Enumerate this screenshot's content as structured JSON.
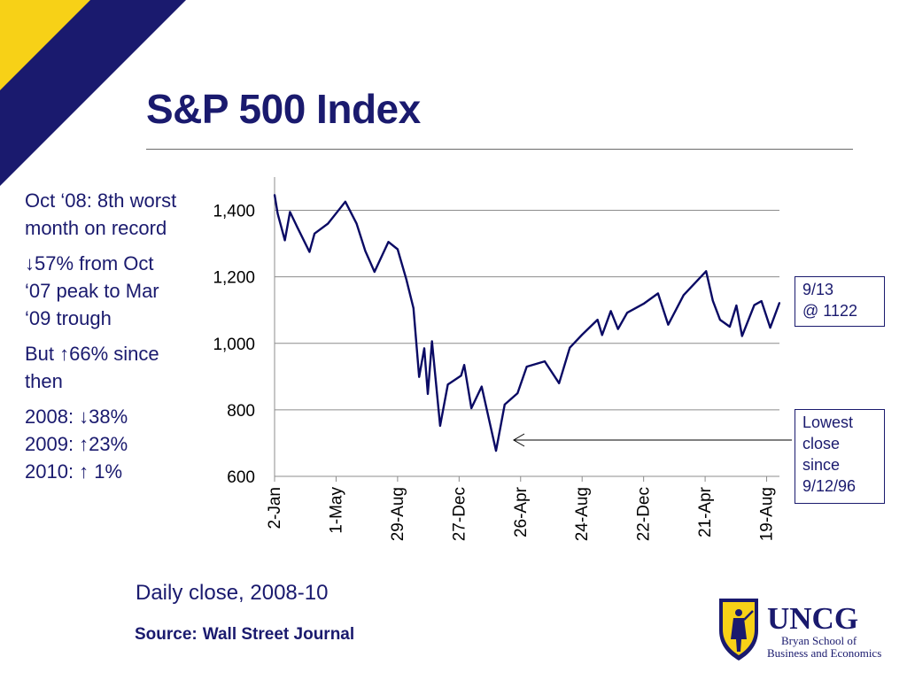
{
  "slide": {
    "title": "S&P 500 Index",
    "colors": {
      "navy": "#1a1a6e",
      "gold": "#f7d117",
      "line": "#0a0a64",
      "grid": "#8c8c8c"
    }
  },
  "notes": [
    [
      "Oct ‘08: 8th worst month on record"
    ],
    [
      "↓57% from Oct ‘07 peak to Mar ‘09 trough"
    ],
    [
      "But ↑66% since then"
    ],
    [
      "2008: ↓38%",
      "2009: ↑23%",
      "2010: ↑  1%"
    ]
  ],
  "callouts": {
    "latest": [
      "9/13",
      "@ 1122"
    ],
    "low": [
      "Lowest",
      "close",
      "since",
      "9/12/96"
    ]
  },
  "caption": "Daily close, 2008-10",
  "source": {
    "label": "Source:",
    "value": "Wall Street Journal"
  },
  "logo": {
    "name": "UNCG",
    "line1": "Bryan School of",
    "line2": "Business and Economics",
    "icon": "seal-figure-icon"
  },
  "chart_data": {
    "type": "line",
    "title": "",
    "xlabel": "",
    "ylabel": "",
    "x_ticks": [
      "2-Jan",
      "1-May",
      "29-Aug",
      "27-Dec",
      "26-Apr",
      "24-Aug",
      "22-Dec",
      "21-Apr",
      "19-Aug"
    ],
    "x_tick_dates": [
      "2008-01-02",
      "2008-05-01",
      "2008-08-29",
      "2008-12-27",
      "2009-04-26",
      "2009-08-24",
      "2009-12-22",
      "2010-04-21",
      "2010-08-19"
    ],
    "y_ticks": [
      600,
      800,
      1000,
      1200,
      1400
    ],
    "y_tick_labels": [
      "600",
      "800",
      "1,000",
      "1,200",
      "1,400"
    ],
    "ylim": [
      600,
      1500
    ],
    "xlim": [
      "2008-01-02",
      "2010-09-13"
    ],
    "grid": true,
    "series": [
      {
        "x": [
          "2008-01-02",
          "2008-01-08",
          "2008-01-22",
          "2008-02-01",
          "2008-02-15",
          "2008-03-10",
          "2008-03-20",
          "2008-04-15",
          "2008-05-19",
          "2008-06-10",
          "2008-06-27",
          "2008-07-15",
          "2008-08-11",
          "2008-08-29",
          "2008-09-15",
          "2008-09-29",
          "2008-10-10",
          "2008-10-20",
          "2008-10-27",
          "2008-11-04",
          "2008-11-20",
          "2008-12-05",
          "2008-12-31",
          "2009-01-06",
          "2009-01-20",
          "2009-02-09",
          "2009-03-09",
          "2009-03-26",
          "2009-04-20",
          "2009-05-08",
          "2009-06-12",
          "2009-07-10",
          "2009-07-31",
          "2009-08-24",
          "2009-09-23",
          "2009-10-02",
          "2009-10-19",
          "2009-11-02",
          "2009-11-20",
          "2009-12-22",
          "2010-01-19",
          "2010-02-08",
          "2010-03-10",
          "2010-04-23",
          "2010-05-06",
          "2010-05-20",
          "2010-06-08",
          "2010-06-21",
          "2010-07-02",
          "2010-07-26",
          "2010-08-09",
          "2010-08-26",
          "2010-09-13"
        ],
        "y": [
          1447,
          1390,
          1310,
          1395,
          1350,
          1275,
          1330,
          1360,
          1426,
          1360,
          1278,
          1215,
          1305,
          1283,
          1193,
          1106,
          899,
          985,
          848,
          1006,
          752,
          876,
          903,
          935,
          805,
          870,
          677,
          816,
          850,
          930,
          946,
          880,
          987,
          1026,
          1071,
          1025,
          1097,
          1043,
          1092,
          1119,
          1150,
          1056,
          1145,
          1217,
          1128,
          1071,
          1050,
          1114,
          1022,
          1115,
          1127,
          1047,
          1122
        ]
      }
    ],
    "annotations": [
      {
        "text": "9/13 @ 1122",
        "x": "2010-09-13",
        "y": 1122
      },
      {
        "text": "Lowest close since 9/12/96",
        "x": "2009-03-09",
        "y": 677
      }
    ]
  }
}
